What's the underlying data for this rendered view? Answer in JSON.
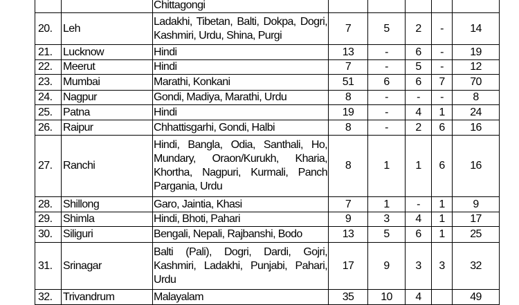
{
  "top_partial": {
    "languages": "Chittagongi"
  },
  "rows": [
    {
      "no": "20.",
      "city": "Leh",
      "languages": "Ladakhi, Tibetan, Balti, Dokpa, Dogri, Kashmiri, Urdu, Shina, Purgi",
      "c1": "7",
      "c2": "5",
      "c3": "2",
      "c4": "-",
      "total": "14"
    },
    {
      "no": "21.",
      "city": "Lucknow",
      "languages": "Hindi",
      "c1": "13",
      "c2": "-",
      "c3": "6",
      "c4": "-",
      "total": "19"
    },
    {
      "no": "22.",
      "city": "Meerut",
      "languages": "Hindi",
      "c1": "7",
      "c2": "-",
      "c3": "5",
      "c4": "-",
      "total": "12"
    },
    {
      "no": "23.",
      "city": "Mumbai",
      "languages": "Marathi, Konkani",
      "c1": "51",
      "c2": "6",
      "c3": "6",
      "c4": "7",
      "total": "70"
    },
    {
      "no": "24.",
      "city": "Nagpur",
      "languages": "Gondi, Madiya, Marathi, Urdu",
      "c1": "8",
      "c2": "-",
      "c3": "-",
      "c4": "-",
      "total": "8"
    },
    {
      "no": "25.",
      "city": "Patna",
      "languages": "Hindi",
      "c1": "19",
      "c2": "-",
      "c3": "4",
      "c4": "1",
      "total": "24"
    },
    {
      "no": "26.",
      "city": "Raipur",
      "languages": "Chhattisgarhi, Gondi, Halbi",
      "c1": "8",
      "c2": "-",
      "c3": "2",
      "c4": "6",
      "total": "16"
    },
    {
      "no": "27.",
      "city": "Ranchi",
      "languages": "Hindi, Bangla, Odia, Santhali, Ho, Mundary, Oraon/Kurukh, Kharia, Khortha, Nagpuri, Kurmali, Panch Pargania, Urdu",
      "c1": "8",
      "c2": "1",
      "c3": "1",
      "c4": "6",
      "total": "16"
    },
    {
      "no": "28.",
      "city": "Shillong",
      "languages": "Garo, Jaintia, Khasi",
      "c1": "7",
      "c2": "1",
      "c3": "-",
      "c4": "1",
      "total": "9"
    },
    {
      "no": "29.",
      "city": "Shimla",
      "languages": "Hindi, Bhoti, Pahari",
      "c1": "9",
      "c2": "3",
      "c3": "4",
      "c4": "1",
      "total": "17"
    },
    {
      "no": "30.",
      "city": "Siliguri",
      "languages": "Bengali, Nepali, Rajbanshi, Bodo",
      "c1": "13",
      "c2": "5",
      "c3": "6",
      "c4": "1",
      "total": "25"
    },
    {
      "no": "31.",
      "city": "Srinagar",
      "languages": "Balti (Pali), Dogri, Dardi, Gojri, Kashmiri, Ladakhi, Punjabi, Pahari, Urdu",
      "c1": "17",
      "c2": "9",
      "c3": "3",
      "c4": "3",
      "total": "32"
    },
    {
      "no": "32.",
      "city": "Trivandrum",
      "languages": "Malayalam",
      "c1": "35",
      "c2": "10",
      "c3": "4",
      "c4": "",
      "total": "49"
    }
  ]
}
